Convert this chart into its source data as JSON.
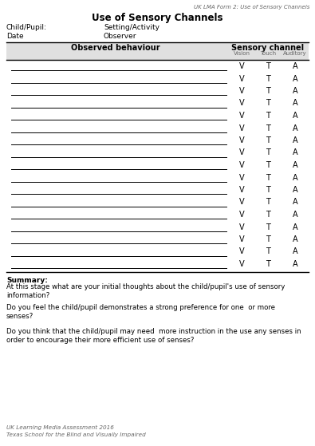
{
  "title_small": "UK LMA Form 2: Use of Sensory Channels",
  "title_main": "Use of Sensory Channels",
  "child_label": "Child/Pupil:",
  "child_value": "Setting/Activity",
  "date_label": "Date",
  "date_value": "Observer",
  "table_header_left": "Observed behaviour",
  "table_header_right": "Sensory channel",
  "col_labels": [
    "Vision",
    "Touch",
    "Auditory"
  ],
  "col_letters": [
    "V",
    "T",
    "A"
  ],
  "num_rows": 17,
  "summary_label": "Summary:",
  "summary_q1": "At this stage what are your initial thoughts about the child/pupil's use of sensory\ninformation?",
  "summary_q2": "Do you feel the child/pupil demonstrates a strong preference for one  or more\nsenses?",
  "summary_q3": "Do you think that the child/pupil may need  more instruction in the use any senses in\norder to encourage their more efficient use of senses?",
  "footer_line1": "UK Learning Media Assessment 2016",
  "footer_line2": "Texas School for the Blind and Visually Impaired",
  "bg_color": "#ffffff",
  "text_color": "#000000",
  "gray_text": "#666666",
  "header_bg": "#e0e0e0"
}
